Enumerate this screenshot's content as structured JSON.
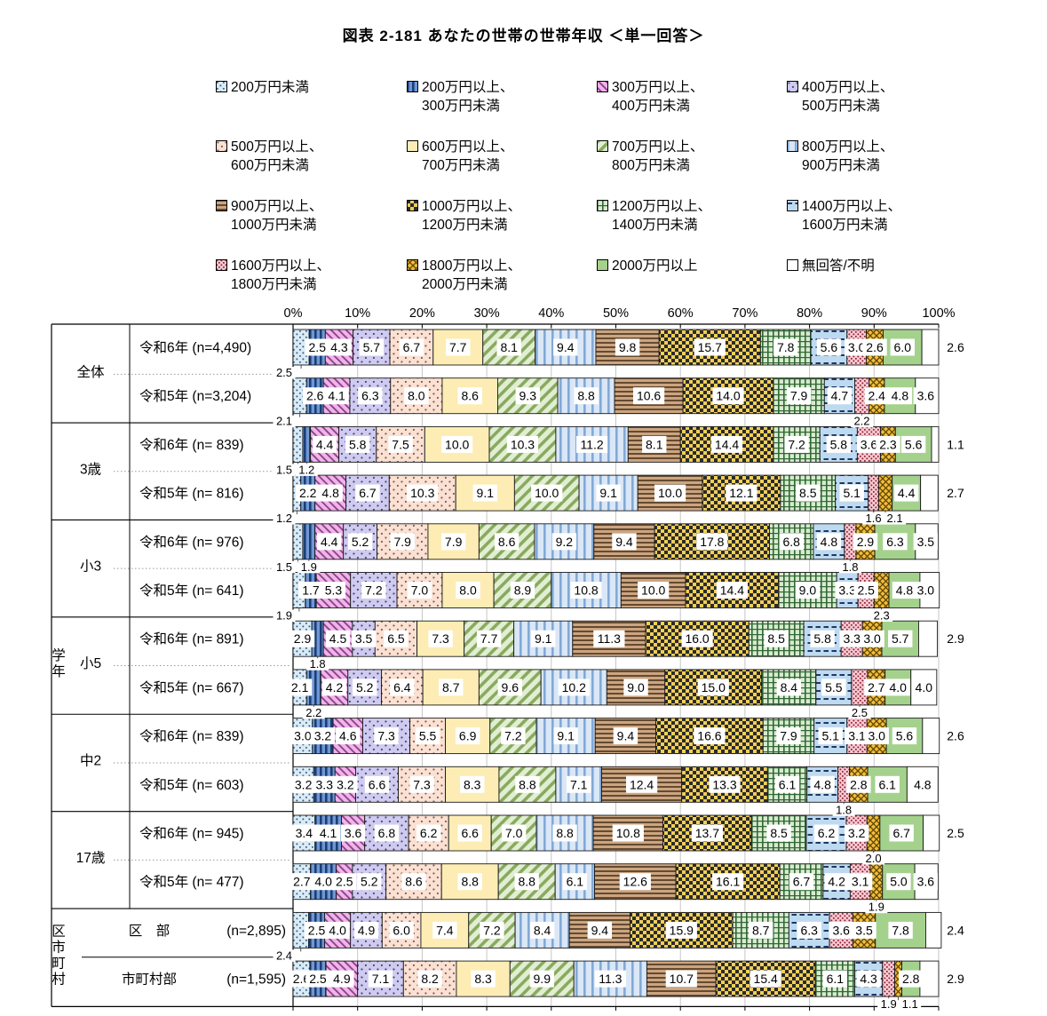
{
  "title": "図表 2-181 あなたの世帯の世帯年収 ＜単一回答＞",
  "chart_data": {
    "type": "bar",
    "variant": "horizontal-stacked-percent",
    "title": "図表 2-181 あなたの世帯の世帯年収 ＜単一回答＞",
    "unit": "%",
    "xlim": [
      0,
      100
    ],
    "x_ticks": [
      "0%",
      "10%",
      "20%",
      "30%",
      "40%",
      "50%",
      "60%",
      "70%",
      "80%",
      "90%",
      "100%"
    ],
    "legend_position": "top",
    "brackets": [
      {
        "label": "200万円未満",
        "lines": [
          "200万円未満"
        ],
        "style": {
          "type": "dots",
          "bg": "#d8ebf7",
          "fg": "#3a5a78",
          "p": 7,
          "r": 1
        }
      },
      {
        "label": "200万円以上、300万円未満",
        "lines": [
          "200万円以上、",
          "300万円未満"
        ],
        "style": {
          "type": "vstripe",
          "bg": "#6f98d2",
          "fg": "#1c3e78",
          "p": 6,
          "w": 2.6
        }
      },
      {
        "label": "300万円以上、400万円未満",
        "lines": [
          "300万円以上、",
          "400万円未満"
        ],
        "style": {
          "type": "diag-up",
          "bg": "#eeb5e6",
          "fg": "#8d3c8d",
          "p": 6,
          "w": 1.8
        }
      },
      {
        "label": "400万円以上、500万円未満",
        "lines": [
          "400万円以上、",
          "500万円未満"
        ],
        "style": {
          "type": "dots",
          "bg": "#cfcbf0",
          "fg": "#46436f",
          "p": 9,
          "r": 1.1
        }
      },
      {
        "label": "500万円以上、600万円未満",
        "lines": [
          "500万円以上、",
          "600万円未満"
        ],
        "style": {
          "type": "dots",
          "bg": "#fbe1d3",
          "fg": "#7d5b49",
          "p": 9,
          "r": 1.1
        }
      },
      {
        "label": "600万円以上、700万円未満",
        "lines": [
          "600万円以上、",
          "700万円未満"
        ],
        "style": {
          "type": "solid",
          "bg": "#fdedb4"
        }
      },
      {
        "label": "700万円以上、800万円未満",
        "lines": [
          "700万円以上、",
          "800万円未満"
        ],
        "style": {
          "type": "diag-down",
          "bg": "#e2eed2",
          "fg": "#88aa60",
          "p": 9,
          "w": 3.6
        }
      },
      {
        "label": "800万円以上、900万円未満",
        "lines": [
          "800万円以上、",
          "900万円未満"
        ],
        "style": {
          "type": "vstripe",
          "bg": "#d9e7f7",
          "fg": "#82a9d6",
          "p": 9,
          "w": 2.6
        }
      },
      {
        "label": "900万円以上、1000万円未満",
        "lines": [
          "900万円以上、",
          "1000万円未満"
        ],
        "style": {
          "type": "hstripe",
          "bg": "#cba581",
          "fg": "#654a30",
          "p": 5,
          "w": 2
        }
      },
      {
        "label": "1000万円以上、1200万円未満",
        "lines": [
          "1000万円以上、",
          "1200万円未満"
        ],
        "style": {
          "type": "checker",
          "bg": "#f2cf57",
          "fg": "#2b2b2b",
          "p": 8
        }
      },
      {
        "label": "1200万円以上、1400万円未満",
        "lines": [
          "1200万円以上、",
          "1400万円未満"
        ],
        "style": {
          "type": "grid",
          "bg": "#d8ead0",
          "fg": "#2f6833",
          "p": 6
        }
      },
      {
        "label": "1400万円以上、1600万円未満",
        "lines": [
          "1400万円以上、",
          "1600万円未満"
        ],
        "style": {
          "type": "dash",
          "bg": "#bedaf0",
          "fg": "#1f3864",
          "p": 9
        }
      },
      {
        "label": "1600万円以上、1800万円未満",
        "lines": [
          "1600万円以上、",
          "1800万円未満"
        ],
        "style": {
          "type": "dots",
          "bg": "#f7cad3",
          "fg": "#8f2034",
          "p": 5,
          "r": 1
        }
      },
      {
        "label": "1800万円以上、2000万円未満",
        "lines": [
          "1800万円以上、",
          "2000万円未満"
        ],
        "style": {
          "type": "diamond",
          "bg": "#f3bc3e",
          "fg": "#5d4600",
          "p": 7
        }
      },
      {
        "label": "2000万円以上",
        "lines": [
          "2000万円以上"
        ],
        "style": {
          "type": "solid",
          "bg": "#a4d28d"
        }
      },
      {
        "label": "無回答/不明",
        "lines": [
          "無回答/不明"
        ],
        "style": {
          "type": "solid",
          "bg": "#ffffff"
        }
      }
    ],
    "side_headers": [
      {
        "text": "学年",
        "rows": [
          2,
          11
        ]
      },
      {
        "text": "区市町村",
        "rows": [
          12,
          13
        ]
      }
    ],
    "group_headers": [
      {
        "text": "全体",
        "rows": [
          0,
          1
        ]
      },
      {
        "text": "3歳",
        "rows": [
          2,
          3
        ]
      },
      {
        "text": "小3",
        "rows": [
          4,
          5
        ]
      },
      {
        "text": "小5",
        "rows": [
          6,
          7
        ]
      },
      {
        "text": "中2",
        "rows": [
          8,
          9
        ]
      },
      {
        "text": "17歳",
        "rows": [
          10,
          11
        ]
      }
    ],
    "rows": [
      {
        "name": "令和6年",
        "n": "(n=4,490)",
        "values": [
          2.5,
          2.5,
          4.3,
          5.7,
          6.7,
          7.7,
          8.1,
          9.4,
          9.8,
          15.7,
          7.8,
          5.6,
          3.0,
          2.6,
          6.0,
          2.6
        ],
        "below": [
          0
        ],
        "last": "out"
      },
      {
        "name": "令和5年",
        "n": "(n=3,204)",
        "values": [
          2.1,
          2.6,
          4.1,
          6.3,
          8.0,
          8.6,
          9.3,
          8.8,
          10.6,
          14.0,
          7.9,
          4.7,
          2.2,
          2.4,
          4.8,
          3.6
        ],
        "below": [
          0,
          12
        ],
        "last": "in"
      },
      {
        "name": "令和6年",
        "n": "(n= 839)",
        "values": [
          1.5,
          1.2,
          4.4,
          5.8,
          7.5,
          10.0,
          10.3,
          11.2,
          8.1,
          14.4,
          7.2,
          5.8,
          3.6,
          2.3,
          5.6,
          1.1
        ],
        "below": [
          0,
          1
        ],
        "last": "out"
      },
      {
        "name": "令和5年",
        "n": "(n= 816)",
        "values": [
          1.2,
          2.2,
          4.8,
          6.7,
          10.3,
          9.1,
          10.0,
          9.1,
          10.0,
          12.1,
          8.5,
          5.1,
          1.6,
          2.1,
          4.4,
          2.7
        ],
        "below": [
          0,
          12,
          13
        ],
        "last": "out"
      },
      {
        "name": "令和6年",
        "n": "(n= 976)",
        "values": [
          1.5,
          1.9,
          4.4,
          5.2,
          7.9,
          7.9,
          8.6,
          9.2,
          9.4,
          17.8,
          6.8,
          4.8,
          1.8,
          2.9,
          6.3,
          3.5
        ],
        "below": [
          0,
          1,
          12
        ],
        "last": "in"
      },
      {
        "name": "令和5年",
        "n": "(n= 641)",
        "values": [
          1.9,
          1.7,
          5.3,
          7.2,
          7.0,
          8.0,
          8.9,
          10.8,
          10.0,
          14.4,
          9.0,
          3.3,
          2.5,
          2.3,
          4.8,
          3.0
        ],
        "below": [
          0,
          13
        ],
        "last": "in"
      },
      {
        "name": "令和6年",
        "n": "(n= 891)",
        "values": [
          2.9,
          1.8,
          4.5,
          3.5,
          6.5,
          7.3,
          7.7,
          9.1,
          11.3,
          16.0,
          8.5,
          5.8,
          3.3,
          3.0,
          5.7,
          2.9
        ],
        "below": [
          1
        ],
        "last": "out"
      },
      {
        "name": "令和5年",
        "n": "(n= 667)",
        "values": [
          2.1,
          2.2,
          4.2,
          5.2,
          6.4,
          8.7,
          9.6,
          10.2,
          9.0,
          15.0,
          8.4,
          5.5,
          2.5,
          2.7,
          4.0,
          4.0
        ],
        "below": [
          1,
          12
        ],
        "last": "in"
      },
      {
        "name": "令和6年",
        "n": "(n= 839)",
        "values": [
          3.0,
          3.2,
          4.6,
          7.3,
          5.5,
          6.9,
          7.2,
          9.1,
          9.4,
          16.6,
          7.9,
          5.1,
          3.1,
          3.0,
          5.6,
          2.6
        ],
        "below": [],
        "last": "out"
      },
      {
        "name": "令和5年",
        "n": "(n= 603)",
        "values": [
          3.2,
          3.3,
          3.2,
          6.6,
          7.3,
          8.3,
          8.8,
          7.1,
          12.4,
          13.3,
          6.1,
          4.8,
          1.8,
          2.8,
          6.1,
          4.8
        ],
        "below": [
          12
        ],
        "last": "in"
      },
      {
        "name": "令和6年",
        "n": "(n= 945)",
        "values": [
          3.4,
          4.1,
          3.6,
          6.8,
          6.2,
          6.6,
          7.0,
          8.8,
          10.8,
          13.7,
          8.5,
          6.2,
          3.2,
          2.0,
          6.7,
          2.5
        ],
        "below": [
          13
        ],
        "last": "out"
      },
      {
        "name": "令和5年",
        "n": "(n= 477)",
        "values": [
          2.7,
          4.0,
          2.5,
          5.2,
          8.6,
          8.8,
          8.8,
          6.1,
          12.6,
          16.1,
          6.7,
          4.2,
          3.1,
          1.9,
          5.0,
          3.6
        ],
        "below": [
          13
        ],
        "last": "in"
      },
      {
        "name": "区　部",
        "n": "(n=2,895)",
        "values": [
          2.4,
          2.5,
          4.0,
          4.9,
          6.0,
          7.4,
          7.2,
          8.4,
          9.4,
          15.9,
          8.7,
          6.3,
          3.6,
          3.5,
          7.8,
          2.4
        ],
        "below": [
          0
        ],
        "last": "out"
      },
      {
        "name": "市町村部",
        "n": "(n=1,595)",
        "values": [
          2.6,
          2.5,
          4.9,
          7.1,
          8.2,
          8.3,
          9.9,
          11.3,
          10.7,
          15.4,
          6.1,
          4.3,
          1.9,
          1.1,
          2.8,
          2.9
        ],
        "below": [
          12,
          13
        ],
        "last": "out"
      }
    ]
  }
}
